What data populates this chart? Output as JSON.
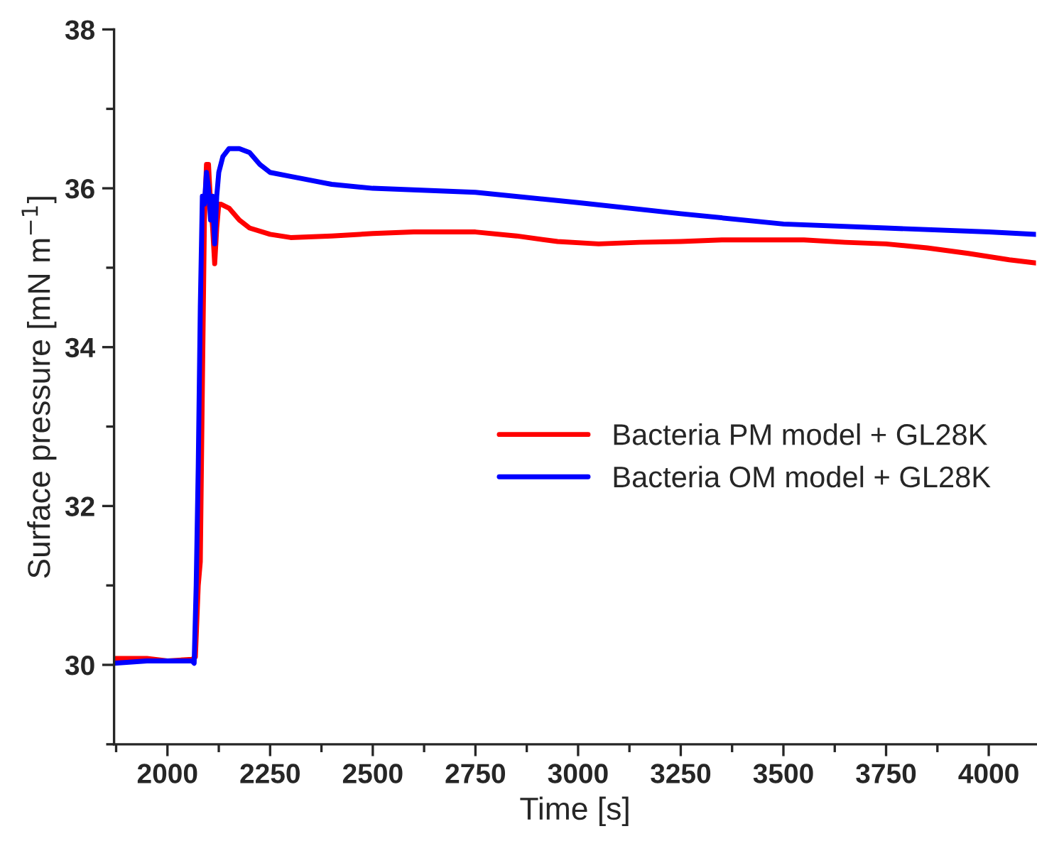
{
  "chart_data": {
    "type": "line",
    "xlabel": "Time [s]",
    "ylabel": "Surface pressure [mN m$^{−1}$]",
    "xlim": [
      1870,
      4115
    ],
    "xticks": [
      2000,
      2250,
      2500,
      2750,
      3000,
      3250,
      3500,
      3750,
      4000
    ],
    "ylim": [
      29,
      38
    ],
    "yticks": [
      30,
      32,
      34,
      36,
      38
    ],
    "legend": "center right",
    "grid": false,
    "line_style": "solid",
    "marker": "none",
    "series": [
      {
        "name": "Bacteria PM model + GL28K",
        "color": "#ff0000",
        "x": [
          1870,
          1950,
          2000,
          2060,
          2068,
          2075,
          2080,
          2085,
          2090,
          2095,
          2100,
          2105,
          2110,
          2115,
          2120,
          2125,
          2130,
          2150,
          2175,
          2200,
          2250,
          2300,
          2400,
          2500,
          2600,
          2700,
          2750,
          2850,
          2950,
          3050,
          3150,
          3250,
          3350,
          3450,
          3550,
          3650,
          3750,
          3850,
          3950,
          4050,
          4115
        ],
        "values": [
          30.08,
          30.08,
          30.05,
          30.07,
          30.1,
          31.0,
          31.3,
          33.5,
          35.6,
          36.3,
          36.3,
          35.8,
          35.5,
          35.05,
          35.5,
          35.8,
          35.8,
          35.75,
          35.6,
          35.5,
          35.42,
          35.38,
          35.4,
          35.43,
          35.45,
          35.45,
          35.45,
          35.4,
          35.33,
          35.3,
          35.32,
          35.33,
          35.35,
          35.35,
          35.35,
          35.32,
          35.3,
          35.25,
          35.18,
          35.1,
          35.06
        ]
      },
      {
        "name": "Bacteria OM model + GL28K",
        "color": "#0000ff",
        "x": [
          1870,
          1950,
          2000,
          2060,
          2065,
          2070,
          2075,
          2080,
          2085,
          2090,
          2095,
          2100,
          2105,
          2110,
          2115,
          2120,
          2125,
          2135,
          2150,
          2175,
          2200,
          2225,
          2250,
          2300,
          2400,
          2500,
          2750,
          3000,
          3250,
          3500,
          3750,
          4000,
          4115
        ],
        "values": [
          30.02,
          30.05,
          30.05,
          30.05,
          30.02,
          31.0,
          32.5,
          34.5,
          35.9,
          35.8,
          36.2,
          36.0,
          35.6,
          35.9,
          35.3,
          35.9,
          36.2,
          36.4,
          36.5,
          36.5,
          36.45,
          36.3,
          36.2,
          36.15,
          36.05,
          36.0,
          35.95,
          35.82,
          35.68,
          35.55,
          35.5,
          35.45,
          35.42
        ]
      }
    ]
  }
}
